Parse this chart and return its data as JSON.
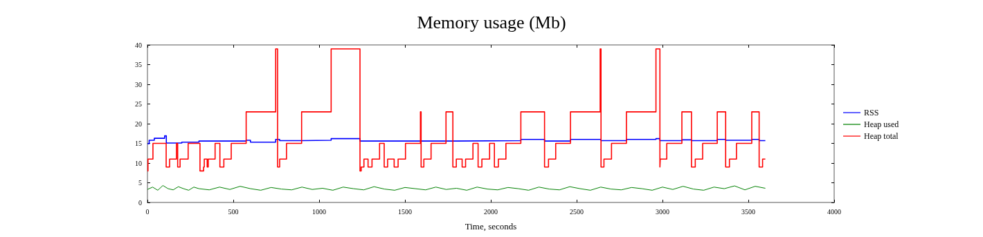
{
  "chart_data": {
    "type": "line",
    "title": "Memory usage (Mb)",
    "xlabel": "Time, seconds",
    "xlim": [
      0,
      4000
    ],
    "xticks": [
      0,
      500,
      1000,
      1500,
      2000,
      2500,
      3000,
      3500,
      4000
    ],
    "ylim": [
      0,
      40
    ],
    "yticks": [
      0,
      5,
      10,
      15,
      20,
      25,
      30,
      35,
      40
    ],
    "grid": false,
    "legend": "right",
    "marker": "none",
    "line_style": "solid",
    "series": [
      {
        "name": "RSS",
        "color": "#0000ff",
        "type": "step",
        "x": [
          0,
          10,
          40,
          100,
          110,
          200,
          300,
          400,
          575,
          600,
          747,
          770,
          898,
          1070,
          1238,
          1500,
          1800,
          2175,
          2313,
          2464,
          2642,
          2790,
          2962,
          2985,
          3113,
          3169,
          3319,
          3368,
          3520,
          3563,
          3599
        ],
        "values": [
          14.9,
          15.8,
          16.3,
          16.9,
          15.1,
          15.3,
          15.6,
          15.6,
          15.8,
          15.3,
          16.0,
          15.7,
          15.8,
          16.2,
          15.6,
          15.6,
          15.7,
          16.0,
          15.6,
          16.0,
          15.7,
          16.0,
          16.2,
          15.7,
          15.9,
          15.7,
          16.0,
          15.8,
          16.0,
          15.7,
          15.7
        ]
      },
      {
        "name": "Heap used",
        "color": "#008000",
        "x": [
          0,
          30,
          60,
          90,
          120,
          150,
          180,
          210,
          240,
          270,
          300,
          360,
          420,
          480,
          540,
          600,
          660,
          720,
          780,
          840,
          900,
          960,
          1020,
          1080,
          1140,
          1200,
          1260,
          1320,
          1380,
          1440,
          1500,
          1560,
          1620,
          1680,
          1740,
          1800,
          1860,
          1920,
          1980,
          2040,
          2100,
          2160,
          2220,
          2280,
          2340,
          2400,
          2460,
          2520,
          2580,
          2640,
          2700,
          2760,
          2820,
          2880,
          2940,
          3000,
          3060,
          3120,
          3180,
          3240,
          3300,
          3360,
          3420,
          3480,
          3540,
          3599
        ],
        "values": [
          3.3,
          3.9,
          3.1,
          4.3,
          3.5,
          3.2,
          4.0,
          3.5,
          3.1,
          3.9,
          3.5,
          3.2,
          3.9,
          3.3,
          4.1,
          3.5,
          3.1,
          3.8,
          3.4,
          3.2,
          3.9,
          3.3,
          3.6,
          3.1,
          3.9,
          3.5,
          3.2,
          4.0,
          3.4,
          3.1,
          3.8,
          3.5,
          3.2,
          3.9,
          3.3,
          3.6,
          3.1,
          3.9,
          3.4,
          3.2,
          3.8,
          3.5,
          3.1,
          3.9,
          3.4,
          3.2,
          4.0,
          3.5,
          3.1,
          3.9,
          3.4,
          3.2,
          3.8,
          3.5,
          3.1,
          3.9,
          3.3,
          4.1,
          3.4,
          3.1,
          3.9,
          3.5,
          4.2,
          3.2,
          4.1,
          3.6
        ]
      },
      {
        "name": "Heap total",
        "color": "#ff0000",
        "type": "step",
        "x": [
          0,
          3,
          32,
          109,
          129,
          169,
          176,
          190,
          237,
          306,
          327,
          331,
          348,
          354,
          394,
          422,
          445,
          488,
          575,
          747,
          758,
          770,
          810,
          898,
          1070,
          1238,
          1245,
          1261,
          1285,
          1308,
          1352,
          1379,
          1399,
          1437,
          1460,
          1503,
          1590,
          1594,
          1610,
          1652,
          1739,
          1779,
          1799,
          1833,
          1853,
          1896,
          1926,
          1948,
          1993,
          2021,
          2044,
          2088,
          2175,
          2313,
          2336,
          2378,
          2464,
          2637,
          2642,
          2659,
          2703,
          2790,
          2962,
          2985,
          2987,
          3025,
          3113,
          3169,
          3191,
          3234,
          3319,
          3368,
          3390,
          3431,
          3520,
          3563,
          3583,
          3599
        ],
        "values": [
          8,
          11,
          15,
          9,
          11,
          15,
          9,
          11,
          15,
          8,
          9,
          11,
          9,
          11,
          15,
          9,
          11,
          15,
          23,
          39,
          9,
          11,
          15,
          23,
          39,
          8,
          9,
          11,
          9,
          11,
          15,
          9,
          11,
          9,
          11,
          15,
          23,
          9,
          11,
          15,
          23,
          9,
          11,
          9,
          11,
          15,
          9,
          11,
          15,
          9,
          11,
          15,
          23,
          9,
          11,
          15,
          23,
          39,
          9,
          11,
          15,
          23,
          39,
          9,
          11,
          15,
          23,
          9,
          11,
          15,
          23,
          9,
          11,
          15,
          23,
          9,
          11,
          11
        ]
      }
    ]
  }
}
